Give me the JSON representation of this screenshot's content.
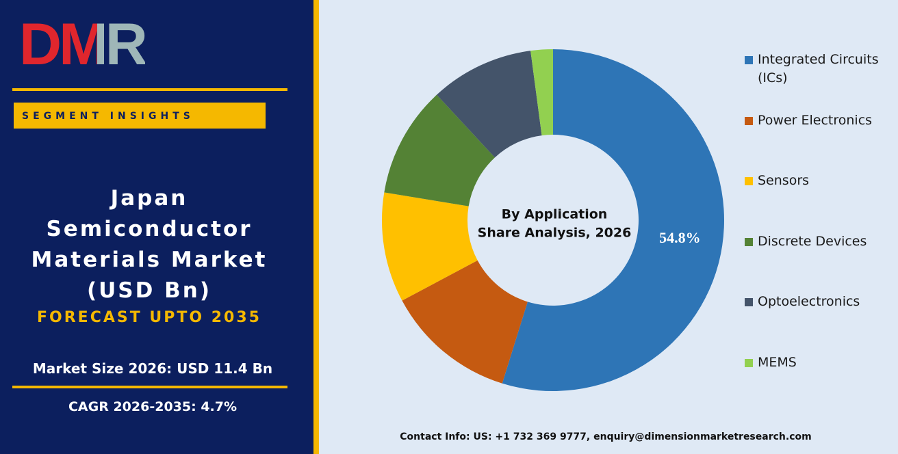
{
  "brand": "DMR",
  "badge": "SEGMENT INSIGHTS",
  "headline_lines": [
    "Japan",
    "Semiconductor",
    "Materials Market",
    "(USD Bn)"
  ],
  "forecast": "FORECAST UPTO 2035",
  "market_size": "Market Size 2026: USD 11.4 Bn",
  "cagr": "CAGR 2026-2035: 4.7%",
  "contact": "Contact Info: US: +1 732 369 9777, enquiry@dimensionmarketresearch.com",
  "chart_data": {
    "type": "donut",
    "title": "By Application",
    "subtitle": "Share Analysis, 2026",
    "categories": [
      "Integrated Circuits (ICs)",
      "Power Electronics",
      "Sensors",
      "Discrete Devices",
      "Optoelectronics",
      "MEMS"
    ],
    "values": [
      54.8,
      12.4,
      10.4,
      10.5,
      9.8,
      2.1
    ],
    "value_labels": [
      "54.8%",
      null,
      null,
      null,
      null,
      null
    ],
    "colors": [
      "#2e75b6",
      "#c55a11",
      "#ffc000",
      "#548235",
      "#44546a",
      "#92d050"
    ]
  }
}
